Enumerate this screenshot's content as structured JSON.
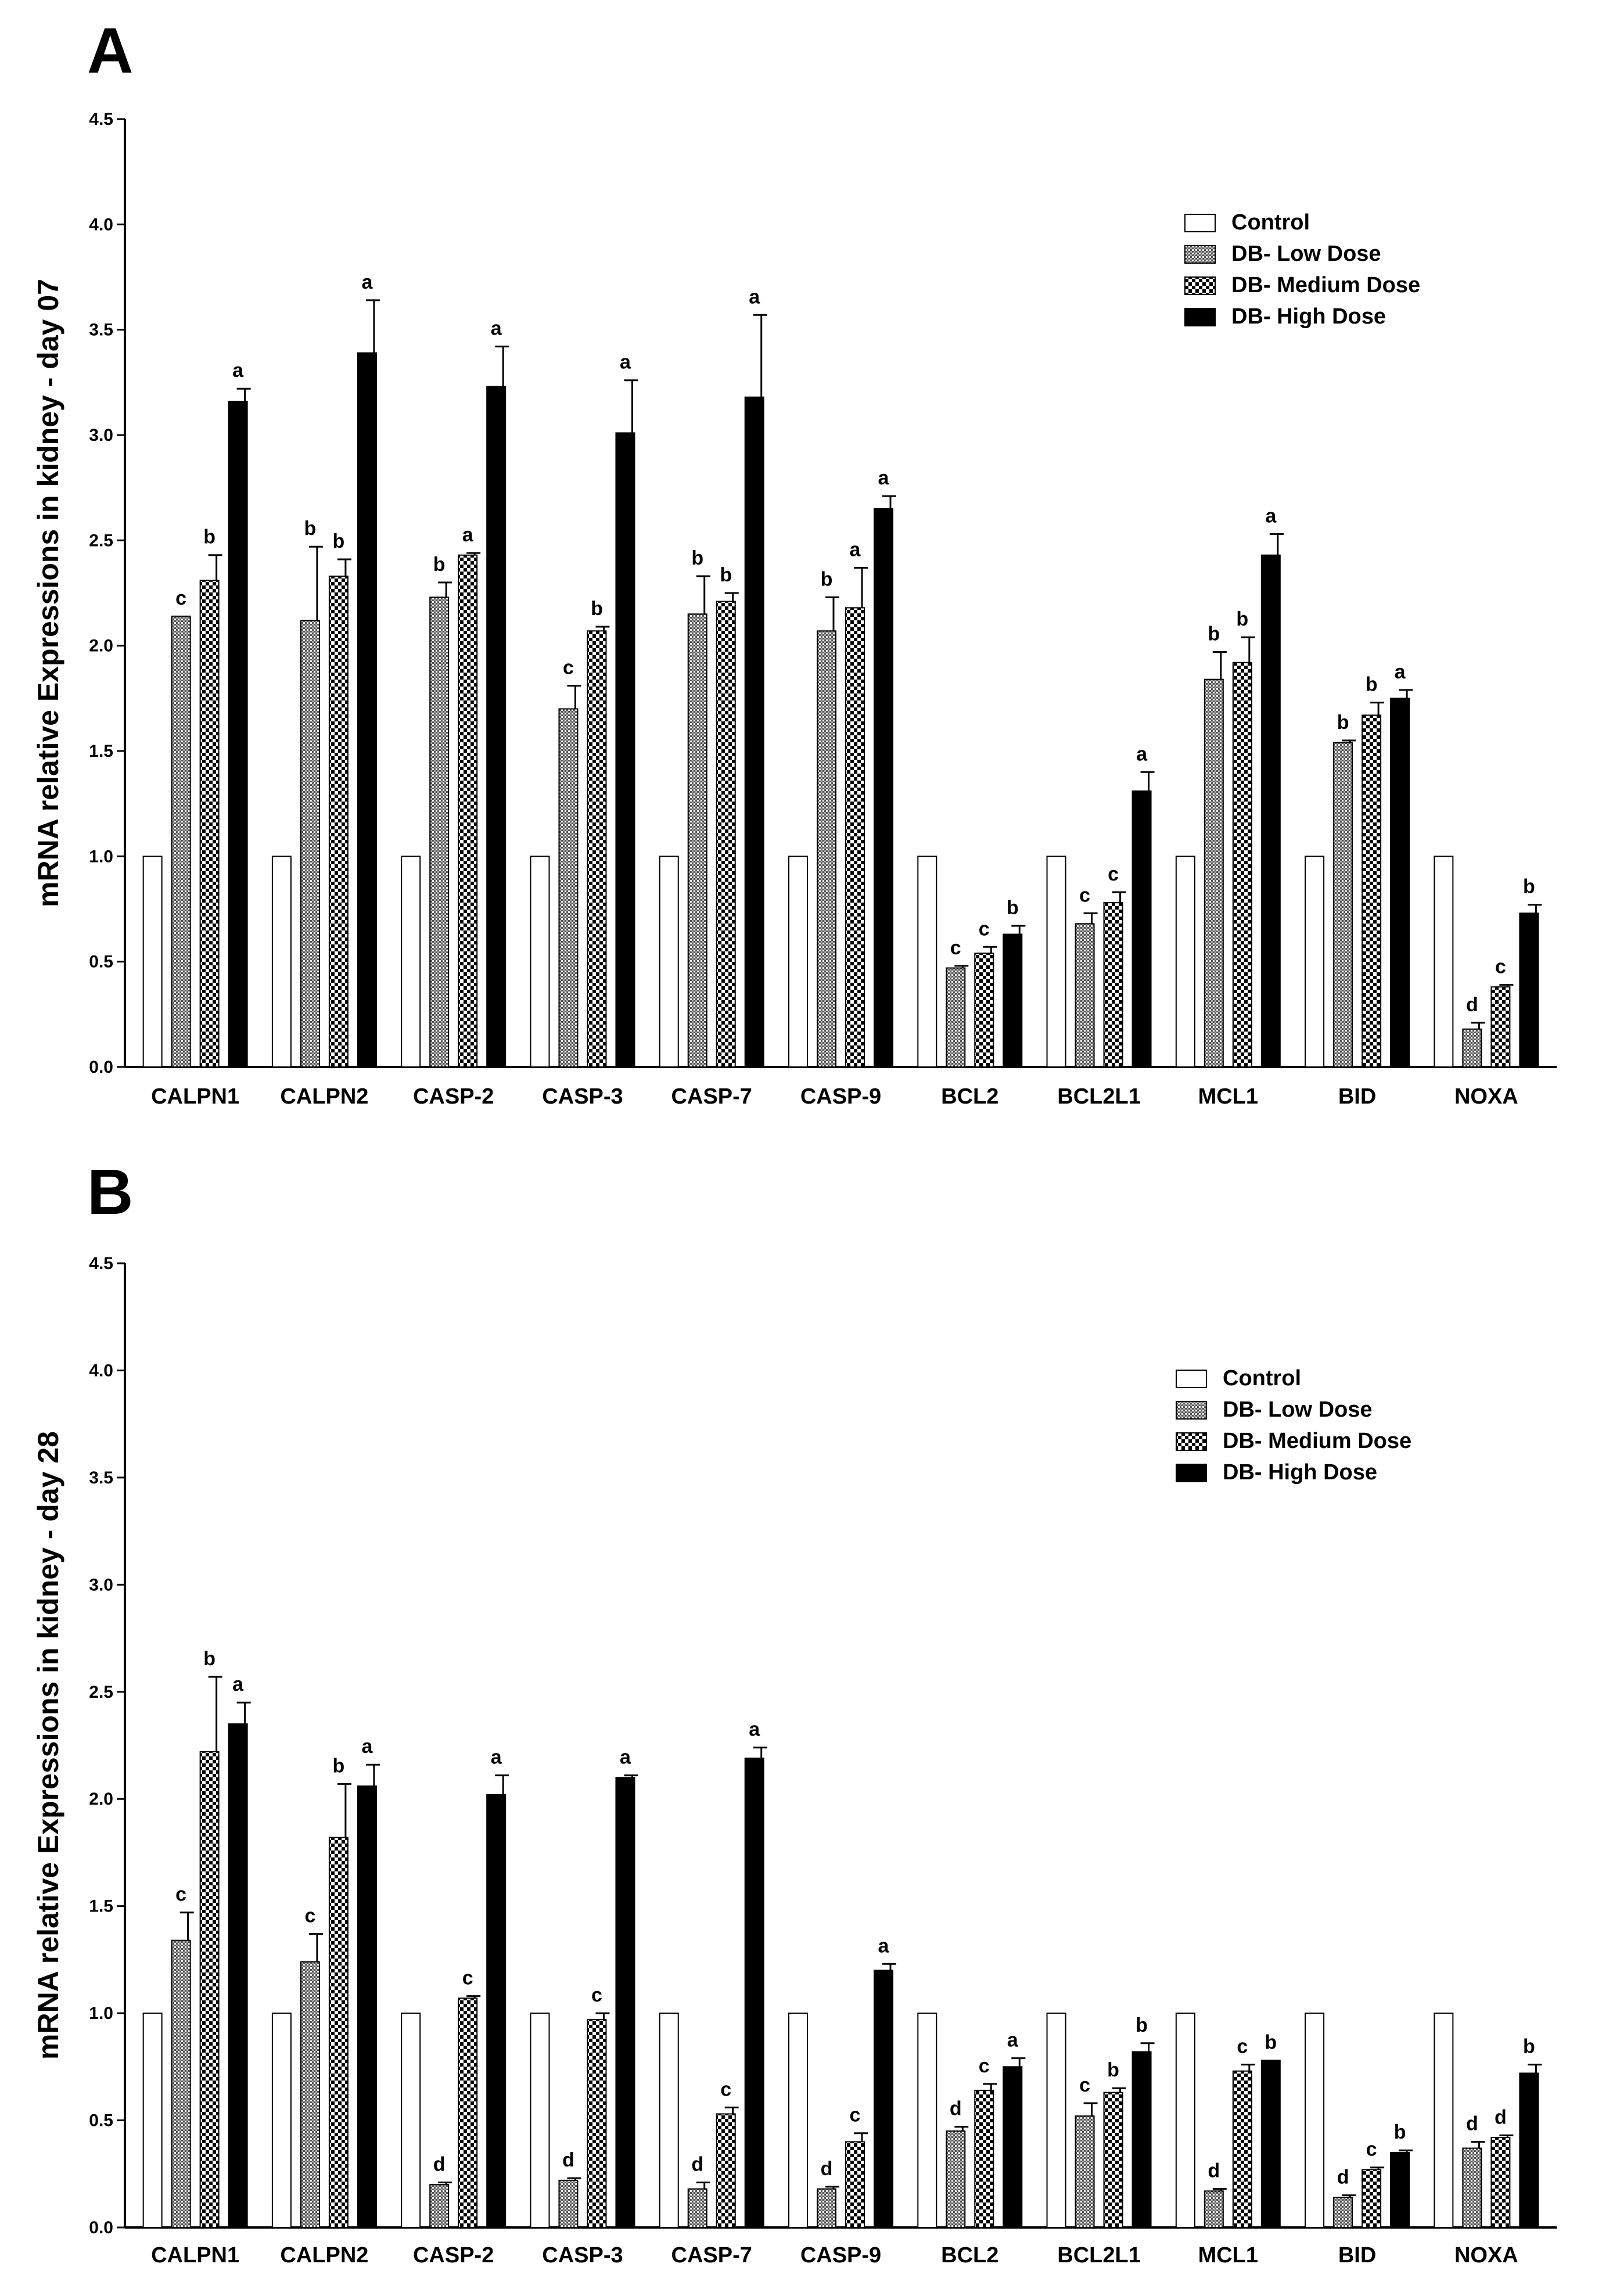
{
  "chart_data": [
    {
      "type": "bar",
      "panel": "A",
      "ylabel": "mRNA relative Expressions in kidney - day 07",
      "ylim": [
        0,
        4.5
      ],
      "yticks": [
        "0.0",
        "0.5",
        "1.0",
        "1.5",
        "2.0",
        "2.5",
        "3.0",
        "3.5",
        "4.0",
        "4.5"
      ],
      "categories": [
        "CALPN1",
        "CALPN2",
        "CASP-2",
        "CASP-3",
        "CASP-7",
        "CASP-9",
        "BCL2",
        "BCL2L1",
        "MCL1",
        "BID",
        "NOXA"
      ],
      "series": [
        {
          "name": "Control",
          "style": "control",
          "values": [
            1,
            1,
            1,
            1,
            1,
            1,
            1,
            1,
            1,
            1,
            1
          ],
          "errors": [
            0,
            0,
            0,
            0,
            0,
            0,
            0,
            0,
            0,
            0,
            0
          ],
          "letters": [
            "",
            "",
            "",
            "",
            "",
            "",
            "",
            "",
            "",
            "",
            ""
          ]
        },
        {
          "name": "DB- Low Dose",
          "style": "low",
          "values": [
            2.14,
            2.12,
            2.23,
            1.7,
            2.15,
            2.07,
            0.47,
            0.68,
            1.84,
            1.54,
            0.18
          ],
          "errors": [
            0,
            0.35,
            0.07,
            0.11,
            0.18,
            0.16,
            0.01,
            0.05,
            0.13,
            0.01,
            0.03
          ],
          "letters": [
            "c",
            "b",
            "b",
            "c",
            "b",
            "b",
            "c",
            "c",
            "b",
            "b",
            "d"
          ]
        },
        {
          "name": "DB- Medium Dose",
          "style": "medium",
          "values": [
            2.31,
            2.33,
            2.43,
            2.07,
            2.21,
            2.18,
            0.54,
            0.78,
            1.92,
            1.67,
            0.38
          ],
          "errors": [
            0.12,
            0.08,
            0.01,
            0.02,
            0.04,
            0.19,
            0.03,
            0.05,
            0.12,
            0.06,
            0.01
          ],
          "letters": [
            "b",
            "b",
            "a",
            "b",
            "b",
            "a",
            "c",
            "c",
            "b",
            "b",
            "c"
          ]
        },
        {
          "name": "DB- High Dose",
          "style": "high",
          "values": [
            3.16,
            3.39,
            3.23,
            3.01,
            3.18,
            2.65,
            0.63,
            1.31,
            2.43,
            1.75,
            0.73
          ],
          "errors": [
            0.06,
            0.25,
            0.19,
            0.25,
            0.39,
            0.06,
            0.04,
            0.09,
            0.1,
            0.04,
            0.04
          ],
          "letters": [
            "a",
            "a",
            "a",
            "a",
            "a",
            "a",
            "b",
            "a",
            "a",
            "a",
            "b"
          ]
        }
      ]
    },
    {
      "type": "bar",
      "panel": "B",
      "ylabel": "mRNA relative Expressions in kidney - day 28",
      "ylim": [
        0,
        4.5
      ],
      "yticks": [
        "0.0",
        "0.5",
        "1.0",
        "1.5",
        "2.0",
        "2.5",
        "3.0",
        "3.5",
        "4.0",
        "4.5"
      ],
      "categories": [
        "CALPN1",
        "CALPN2",
        "CASP-2",
        "CASP-3",
        "CASP-7",
        "CASP-9",
        "BCL2",
        "BCL2L1",
        "MCL1",
        "BID",
        "NOXA"
      ],
      "series": [
        {
          "name": "Control",
          "style": "control",
          "values": [
            1,
            1,
            1,
            1,
            1,
            1,
            1,
            1,
            1,
            1,
            1
          ],
          "errors": [
            0,
            0,
            0,
            0,
            0,
            0,
            0,
            0,
            0,
            0,
            0
          ],
          "letters": [
            "",
            "",
            "",
            "",
            "",
            "",
            "",
            "",
            "",
            "",
            ""
          ]
        },
        {
          "name": "DB- Low Dose",
          "style": "low",
          "values": [
            1.34,
            1.24,
            0.2,
            0.22,
            0.18,
            0.18,
            0.45,
            0.52,
            0.17,
            0.14,
            0.37
          ],
          "errors": [
            0.13,
            0.13,
            0.01,
            0.01,
            0.03,
            0.01,
            0.02,
            0.06,
            0.01,
            0.01,
            0.03
          ],
          "letters": [
            "c",
            "c",
            "d",
            "d",
            "d",
            "d",
            "d",
            "c",
            "d",
            "d",
            "d"
          ]
        },
        {
          "name": "DB- Medium Dose",
          "style": "medium",
          "values": [
            2.22,
            1.82,
            1.07,
            0.97,
            0.53,
            0.4,
            0.64,
            0.63,
            0.73,
            0.27,
            0.42
          ],
          "errors": [
            0.35,
            0.25,
            0.01,
            0.03,
            0.03,
            0.04,
            0.03,
            0.02,
            0.03,
            0.01,
            0.01
          ],
          "letters": [
            "b",
            "b",
            "c",
            "c",
            "c",
            "c",
            "c",
            "b",
            "c",
            "c",
            "d"
          ]
        },
        {
          "name": "DB- High Dose",
          "style": "high",
          "values": [
            2.35,
            2.06,
            2.02,
            2.1,
            2.19,
            1.2,
            0.75,
            0.82,
            0.78,
            0.35,
            0.72
          ],
          "errors": [
            0.1,
            0.1,
            0.09,
            0.01,
            0.05,
            0.03,
            0.04,
            0.04,
            0,
            0.01,
            0.04
          ],
          "letters": [
            "a",
            "a",
            "a",
            "a",
            "a",
            "a",
            "a",
            "b",
            "b",
            "b",
            "b"
          ]
        }
      ]
    }
  ]
}
